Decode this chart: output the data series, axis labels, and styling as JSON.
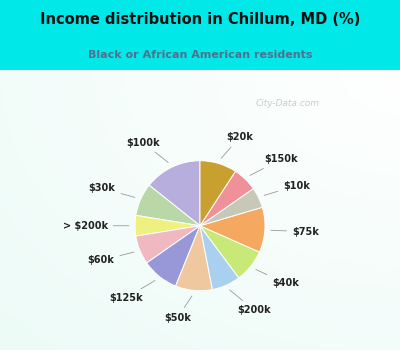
{
  "title": "Income distribution in Chillum, MD (%)",
  "subtitle": "Black or African American residents",
  "watermark": "City-Data.com",
  "labels": [
    "$100k",
    "$30k",
    "> $200k",
    "$60k",
    "$125k",
    "$50k",
    "$200k",
    "$40k",
    "$75k",
    "$10k",
    "$150k",
    "$20k"
  ],
  "values": [
    14,
    8,
    5,
    7,
    9,
    9,
    7,
    8,
    11,
    5,
    6,
    9
  ],
  "colors": [
    "#b8aedd",
    "#b8d8a8",
    "#f0f080",
    "#f0b8c0",
    "#9898d8",
    "#f0c8a0",
    "#aad0f0",
    "#c8e878",
    "#f5a860",
    "#c8c8b8",
    "#f09098",
    "#c8a030"
  ],
  "bg_outer": "#00e8e8",
  "bg_chart_top_left": "#c8ede0",
  "bg_chart_center": "#f0f8f5",
  "title_color": "#111111",
  "subtitle_color": "#507090",
  "label_color": "#222222",
  "startangle": 90,
  "title_fontsize": 10.5,
  "subtitle_fontsize": 8,
  "label_fontsize": 7
}
